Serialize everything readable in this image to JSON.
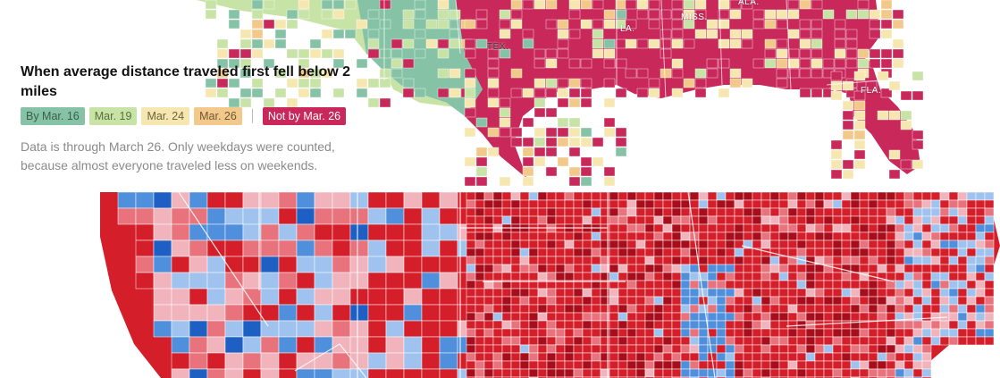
{
  "top_map": {
    "legend": {
      "title": "When average distance traveled first fell below 2 miles",
      "items": [
        {
          "label": "By Mar. 16",
          "color": "#86c3a6",
          "text_color": "#3a5e4b"
        },
        {
          "label": "Mar. 19",
          "color": "#c8e3a6",
          "text_color": "#5a6e3e"
        },
        {
          "label": "Mar. 24",
          "color": "#f6e7b1",
          "text_color": "#6e6238"
        },
        {
          "label": "Mar. 26",
          "color": "#f3c98b",
          "text_color": "#6e5634"
        },
        {
          "label": "Not by Mar. 26",
          "color": "#c8285a",
          "text_color": "#ffffff"
        }
      ],
      "note": "Data is through March 26. Only weekdays were counted, because almost everyone traveled less on weekends."
    },
    "state_labels": [
      "TEX.",
      "LA.",
      "MISS.",
      "ALA.",
      "FLA."
    ]
  },
  "bottom_map": {
    "colors": {
      "dark_red": "#a80d1c",
      "red": "#d41f2b",
      "light_red": "#e8737d",
      "pink": "#f2b4bc",
      "light_blue": "#9fc3ee",
      "blue": "#4f8fdc",
      "dark_blue": "#1d5fc2"
    }
  }
}
